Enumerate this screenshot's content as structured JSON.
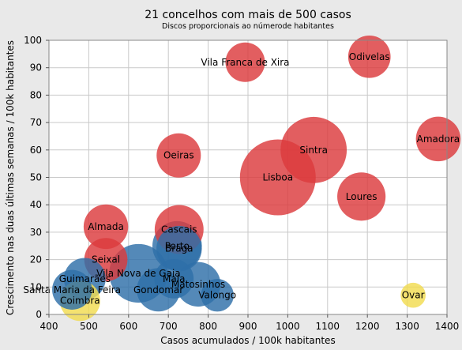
{
  "chart_data": {
    "type": "scatter",
    "title": "21 concelhos com mais de 500 casos",
    "subtitle": "Discos proporcionais ao númerode habitantes",
    "xlabel": "Casos acumulados / 100k habitantes",
    "ylabel": "Crescimento nas duas últimas semanas / 100k habitantes",
    "xlim": [
      400,
      1400
    ],
    "ylim": [
      0,
      100
    ],
    "xticks": [
      400,
      500,
      600,
      700,
      800,
      900,
      1000,
      1100,
      1200,
      1300,
      1400
    ],
    "yticks": [
      0,
      10,
      20,
      30,
      40,
      50,
      60,
      70,
      80,
      90,
      100
    ],
    "grid": true,
    "colors": {
      "red": "#dc3a3d",
      "blue": "#2e6fa8",
      "yellow": "#f2dc50",
      "grid": "#c9c9c9",
      "plot_bg": "#ffffff",
      "page_bg": "#e9e9e9"
    },
    "points": [
      {
        "label": "Vila Franca de Xira",
        "x": 893,
        "y": 92,
        "population": 137000,
        "color": "red"
      },
      {
        "label": "Odivelas",
        "x": 1205,
        "y": 94,
        "population": 158000,
        "color": "red"
      },
      {
        "label": "Sintra",
        "x": 1065,
        "y": 60,
        "population": 385000,
        "color": "red"
      },
      {
        "label": "Amadora",
        "x": 1378,
        "y": 64,
        "population": 175000,
        "color": "red"
      },
      {
        "label": "Oeiras",
        "x": 726,
        "y": 58,
        "population": 172000,
        "color": "red"
      },
      {
        "label": "Lisboa",
        "x": 975,
        "y": 50,
        "population": 505000,
        "color": "red"
      },
      {
        "label": "Loures",
        "x": 1185,
        "y": 43,
        "population": 205000,
        "color": "red"
      },
      {
        "label": "Almada",
        "x": 543,
        "y": 32,
        "population": 174000,
        "color": "red"
      },
      {
        "label": "Cascais",
        "x": 727,
        "y": 31,
        "population": 210000,
        "color": "red"
      },
      {
        "label": "Seixal",
        "x": 543,
        "y": 20,
        "population": 164000,
        "color": "red"
      },
      {
        "label": "Porto",
        "x": 722,
        "y": 25,
        "population": 215000,
        "color": "blue"
      },
      {
        "label": "Braga",
        "x": 727,
        "y": 24,
        "population": 181000,
        "color": "blue"
      },
      {
        "label": "Vila Nova de Gaia",
        "x": 625,
        "y": 15,
        "population": 302000,
        "color": "blue"
      },
      {
        "label": "Maia",
        "x": 714,
        "y": 13,
        "population": 136000,
        "color": "blue"
      },
      {
        "label": "Matosinhos",
        "x": 775,
        "y": 11,
        "population": 175000,
        "color": "blue"
      },
      {
        "label": "Gondomar",
        "x": 675,
        "y": 9,
        "population": 165000,
        "color": "blue"
      },
      {
        "label": "Guimarães",
        "x": 490,
        "y": 13,
        "population": 153000,
        "color": "blue"
      },
      {
        "label": "Santa Maria da Feira",
        "x": 458,
        "y": 9,
        "population": 139000,
        "color": "blue"
      },
      {
        "label": "Valongo",
        "x": 823,
        "y": 7,
        "population": 94000,
        "color": "blue"
      },
      {
        "label": "Coimbra",
        "x": 478,
        "y": 5,
        "population": 143000,
        "color": "yellow"
      },
      {
        "label": "Ovar",
        "x": 1315,
        "y": 7,
        "population": 55000,
        "color": "yellow"
      }
    ]
  }
}
